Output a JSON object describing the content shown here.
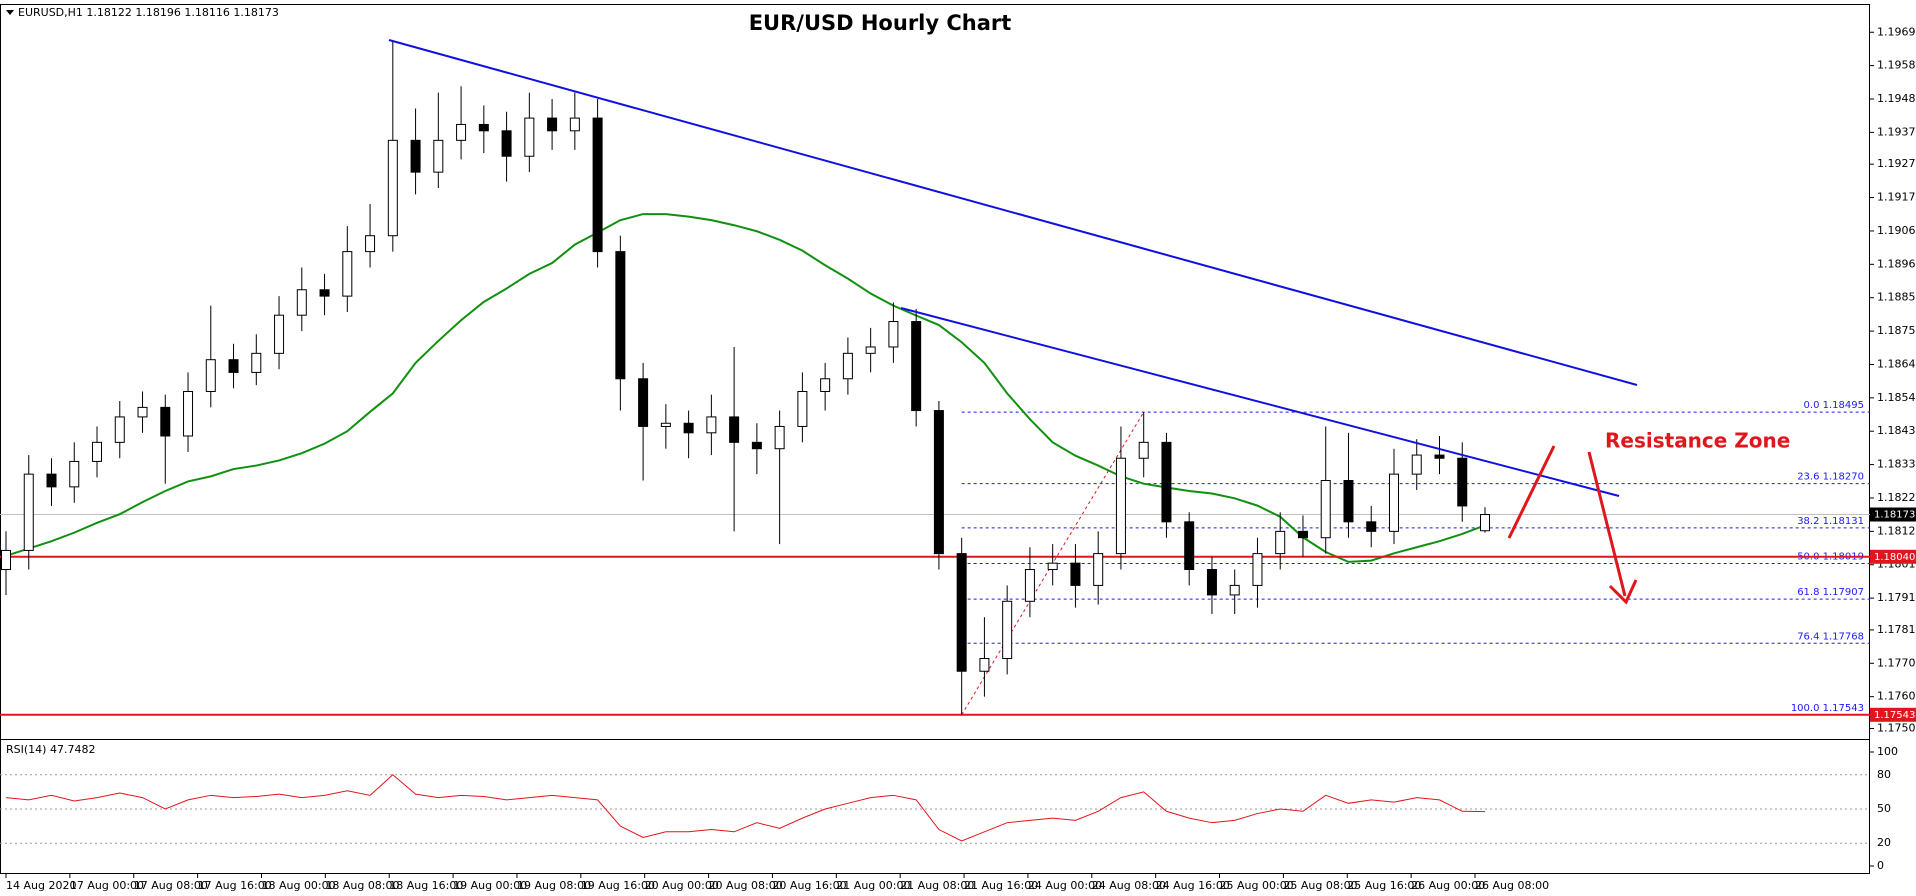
{
  "chart_data": [
    {
      "type": "candlestick",
      "title": "EUR/USD Hourly Chart",
      "symbol": "EURUSD,H1",
      "open": [
        1.18,
        1.1806,
        1.183,
        1.1826,
        1.1834,
        1.184,
        1.1848,
        1.1851,
        1.1842,
        1.1856,
        1.1866,
        1.1862,
        1.1868,
        1.188,
        1.1888,
        1.1886,
        1.19,
        1.1905,
        1.1935,
        1.1925,
        1.1935,
        1.194,
        1.1938,
        1.193,
        1.1942,
        1.1938,
        1.1942,
        1.19,
        1.186,
        1.1845,
        1.1846,
        1.1843,
        1.1848,
        1.184,
        1.1838,
        1.1845,
        1.1856,
        1.186,
        1.1868,
        1.187,
        1.1878,
        1.185,
        1.1805,
        1.1768,
        1.1772,
        1.179,
        1.18,
        1.1802,
        1.1795,
        1.1805,
        1.1835,
        1.184,
        1.1815,
        1.18,
        1.1792,
        1.1795,
        1.1805,
        1.1812,
        1.181,
        1.1828,
        1.1815,
        1.1812,
        1.183,
        1.1836,
        1.1835,
        1.18122
      ],
      "high": [
        1.1812,
        1.1836,
        1.1835,
        1.184,
        1.1845,
        1.1853,
        1.1856,
        1.1855,
        1.1862,
        1.1883,
        1.1871,
        1.1874,
        1.1886,
        1.1895,
        1.1893,
        1.1908,
        1.1915,
        1.1966,
        1.1945,
        1.195,
        1.1952,
        1.1946,
        1.1944,
        1.195,
        1.1948,
        1.195,
        1.1948,
        1.1905,
        1.1865,
        1.1852,
        1.185,
        1.1855,
        1.187,
        1.1846,
        1.185,
        1.1862,
        1.1865,
        1.1873,
        1.1876,
        1.1884,
        1.1882,
        1.1853,
        1.181,
        1.1785,
        1.1795,
        1.1807,
        1.1808,
        1.1808,
        1.1812,
        1.1845,
        1.18495,
        1.1843,
        1.1818,
        1.1804,
        1.18,
        1.181,
        1.1818,
        1.1817,
        1.1845,
        1.1843,
        1.182,
        1.1838,
        1.1841,
        1.1842,
        1.184,
        1.18196
      ],
      "low": [
        1.1792,
        1.18,
        1.182,
        1.1821,
        1.1829,
        1.1835,
        1.1843,
        1.1827,
        1.1837,
        1.1851,
        1.1857,
        1.1858,
        1.1863,
        1.1875,
        1.188,
        1.1881,
        1.1895,
        1.19,
        1.1918,
        1.192,
        1.1929,
        1.1931,
        1.1922,
        1.1925,
        1.1932,
        1.1932,
        1.1895,
        1.185,
        1.1828,
        1.1838,
        1.1835,
        1.1836,
        1.1812,
        1.183,
        1.1808,
        1.184,
        1.185,
        1.1855,
        1.1862,
        1.1865,
        1.1845,
        1.18,
        1.17543,
        1.176,
        1.1767,
        1.1785,
        1.1795,
        1.1788,
        1.1789,
        1.18,
        1.1829,
        1.181,
        1.1795,
        1.1786,
        1.1786,
        1.1788,
        1.18,
        1.1804,
        1.1805,
        1.181,
        1.1807,
        1.1808,
        1.1825,
        1.183,
        1.1815,
        1.18116
      ],
      "close": [
        1.1806,
        1.183,
        1.1826,
        1.1834,
        1.184,
        1.1848,
        1.1851,
        1.1842,
        1.1856,
        1.1866,
        1.1862,
        1.1868,
        1.188,
        1.1888,
        1.1886,
        1.19,
        1.1905,
        1.1935,
        1.1925,
        1.1935,
        1.194,
        1.1938,
        1.193,
        1.1942,
        1.1938,
        1.1942,
        1.19,
        1.186,
        1.1845,
        1.1846,
        1.1843,
        1.1848,
        1.184,
        1.1838,
        1.1845,
        1.1856,
        1.186,
        1.1868,
        1.187,
        1.1878,
        1.185,
        1.1805,
        1.1768,
        1.1772,
        1.179,
        1.18,
        1.1802,
        1.1795,
        1.1805,
        1.1835,
        1.184,
        1.1815,
        1.18,
        1.1792,
        1.1795,
        1.1805,
        1.1812,
        1.181,
        1.1828,
        1.1815,
        1.1812,
        1.183,
        1.1836,
        1.1835,
        1.182,
        1.18173
      ],
      "ma": {
        "color": "#109010",
        "values": [
          1.18043,
          1.18066,
          1.18089,
          1.18116,
          1.18147,
          1.18174,
          1.18212,
          1.18247,
          1.18277,
          1.18293,
          1.18316,
          1.18327,
          1.18343,
          1.18366,
          1.18396,
          1.18435,
          1.18496,
          1.18554,
          1.1865,
          1.18719,
          1.18784,
          1.18842,
          1.18884,
          1.1893,
          1.18964,
          1.19022,
          1.1906,
          1.19099,
          1.19118,
          1.19118,
          1.1911,
          1.19099,
          1.19083,
          1.19064,
          1.19037,
          1.19003,
          1.18957,
          1.18915,
          1.18868,
          1.1883,
          1.18799,
          1.18769,
          1.18715,
          1.1865,
          1.18554,
          1.18473,
          1.184,
          1.18358,
          1.18327,
          1.18293,
          1.1827,
          1.18258,
          1.18247,
          1.18239,
          1.18224,
          1.18201,
          1.18166,
          1.18101,
          1.18055,
          1.18024,
          1.18028,
          1.18051,
          1.1807,
          1.18089,
          1.18112,
          1.18139
        ]
      },
      "ylim": [
        1.1747,
        1.1976
      ],
      "yticks": [
        {
          "value": 1.1969,
          "label": "1.19690"
        },
        1.19585,
        {
          "value": 1.1948,
          "label": "1.19480"
        },
        1.19375,
        1.19275,
        {
          "value": 1.1917,
          "label": "1.19170"
        },
        1.19065,
        {
          "value": 1.1896,
          "label": "1.18960"
        },
        1.18855,
        {
          "value": 1.1875,
          "label": "1.18750"
        },
        1.18645,
        {
          "value": 1.1854,
          "label": "1.18540"
        },
        1.18435,
        {
          "value": 1.1833,
          "label": "1.18330"
        },
        1.18225,
        {
          "value": 1.1812,
          "label": "1.18120"
        },
        1.18015,
        {
          "value": 1.1791,
          "label": "1.17910"
        },
        {
          "value": 1.1781,
          "label": "1.17810"
        },
        1.17705,
        {
          "value": 1.176,
          "label": "1.17600"
        },
        {
          "value": 1.175,
          "label": "1.17500"
        }
      ],
      "x_labels": [
        "14 Aug 2020",
        "17 Aug 00:00",
        "17 Aug 08:00",
        "17 Aug 16:00",
        "18 Aug 00:00",
        "18 Aug 08:00",
        "18 Aug 16:00",
        "19 Aug 00:00",
        "19 Aug 08:00",
        "19 Aug 16:00",
        "20 Aug 00:00",
        "20 Aug 08:00",
        "20 Aug 16:00",
        "21 Aug 00:00",
        "21 Aug 08:00",
        "21 Aug 16:00",
        "24 Aug 00:00",
        "24 Aug 08:00",
        "24 Aug 16:00",
        "25 Aug 00:00",
        "25 Aug 08:00",
        "25 Aug 16:00",
        "26 Aug 00:00",
        "26 Aug 08:00"
      ],
      "fib_levels": [
        {
          "ratio": {
            "value": 0,
            "label": "0.0"
          },
          "price": 1.18495
        },
        {
          "ratio": 23.6,
          "price": {
            "value": 1.1827,
            "label": "1.18270"
          }
        },
        {
          "ratio": 38.2,
          "price": 1.18131
        },
        {
          "ratio": {
            "value": 50,
            "label": "50.0"
          },
          "price": 1.18019
        },
        {
          "ratio": 61.8,
          "price": 1.17907
        },
        {
          "ratio": 76.4,
          "price": 1.17768
        },
        {
          "ratio": {
            "value": 100,
            "label": "100.0"
          },
          "price": 1.17543
        }
      ],
      "fib_color": "#1a1aff",
      "levels": [
        {
          "value": 1.1804,
          "label": "1.18040"
        },
        1.17543
      ],
      "level_color": "#e0161c",
      "annotation": "Resistance Zone"
    },
    {
      "type": "line",
      "name": "RSI(14)",
      "color": "#e0161c",
      "values": [
        60,
        58,
        62,
        57,
        60,
        64,
        60,
        50,
        58,
        62,
        60,
        61,
        63,
        60,
        62,
        66,
        62,
        80,
        63,
        60,
        62,
        61,
        58,
        60,
        62,
        60,
        58,
        35,
        25,
        30,
        30,
        32,
        30,
        38,
        33,
        42,
        50,
        55,
        60,
        62,
        58,
        32,
        22,
        30,
        38,
        40,
        42,
        40,
        48,
        60,
        65,
        48,
        42,
        38,
        40,
        46,
        50,
        48,
        62,
        55,
        58,
        56,
        60,
        58,
        48,
        47.7482
      ],
      "ylim": [
        0,
        100
      ],
      "yticks": [
        0,
        20,
        50,
        80,
        100
      ]
    }
  ]
}
